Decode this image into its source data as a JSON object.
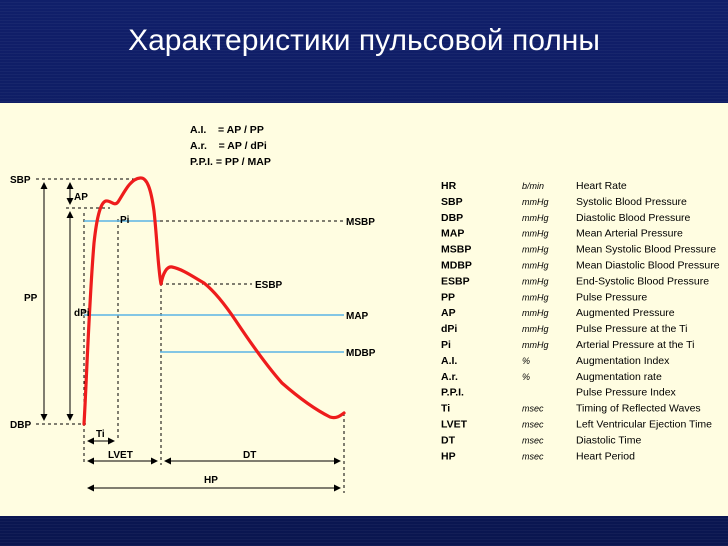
{
  "slide": {
    "title": "Характеристики пульсовой полны"
  },
  "formulas": [
    "A.I.    = AP / PP",
    "A.r.    = AP / dPi",
    "P.P.I. = PP / MAP"
  ],
  "diagram_labels": {
    "sbp": "SBP",
    "dbp": "DBP",
    "pp": "PP",
    "ap": "AP",
    "dpi": "dPi",
    "pi": "Pi",
    "msbp": "MSBP",
    "esbp": "ESBP",
    "map": "MAP",
    "mdbp": "MDBP",
    "ti": "Ti",
    "lvet": "LVET",
    "dt": "DT",
    "hp": "HP"
  },
  "legend": [
    {
      "abbr": "HR",
      "unit": "b/min",
      "desc": "Heart Rate"
    },
    {
      "abbr": "SBP",
      "unit": "mmHg",
      "desc": "Systolic Blood Pressure"
    },
    {
      "abbr": "DBP",
      "unit": "mmHg",
      "desc": "Diastolic Blood Pressure"
    },
    {
      "abbr": "MAP",
      "unit": "mmHg",
      "desc": "Mean Arterial Pressure"
    },
    {
      "abbr": "MSBP",
      "unit": "mmHg",
      "desc": "Mean Systolic Blood Pressure"
    },
    {
      "abbr": "MDBP",
      "unit": "mmHg",
      "desc": "Mean Diastolic Blood Pressure"
    },
    {
      "abbr": "ESBP",
      "unit": "mmHg",
      "desc": "End-Systolic Blood Pressure"
    },
    {
      "abbr": "PP",
      "unit": "mmHg",
      "desc": "Pulse Pressure"
    },
    {
      "abbr": "AP",
      "unit": "mmHg",
      "desc": "Augmented Pressure"
    },
    {
      "abbr": "dPi",
      "unit": "mmHg",
      "desc": "Pulse Pressure at the Ti"
    },
    {
      "abbr": "Pi",
      "unit": "mmHg",
      "desc": "Arterial Pressure at the Ti"
    },
    {
      "abbr": "A.I.",
      "unit": "%",
      "desc": "Augmentation Index"
    },
    {
      "abbr": "A.r.",
      "unit": "%",
      "desc": "Augmentation rate"
    },
    {
      "abbr": "P.P.I.",
      "unit": "",
      "desc": "Pulse Pressure Index"
    },
    {
      "abbr": "Ti",
      "unit": "msec",
      "desc": "Timing of Reflected Waves"
    },
    {
      "abbr": "LVET",
      "unit": "msec",
      "desc": "Left Ventricular Ejection Time"
    },
    {
      "abbr": "DT",
      "unit": "msec",
      "desc": "Diastolic Time"
    },
    {
      "abbr": "HP",
      "unit": "msec",
      "desc": "Heart Period"
    }
  ],
  "colors": {
    "background": "#0b1a5c",
    "panel": "#fffde1",
    "waveform": "#ee1c1c",
    "level_line": "#5ab4e6"
  }
}
